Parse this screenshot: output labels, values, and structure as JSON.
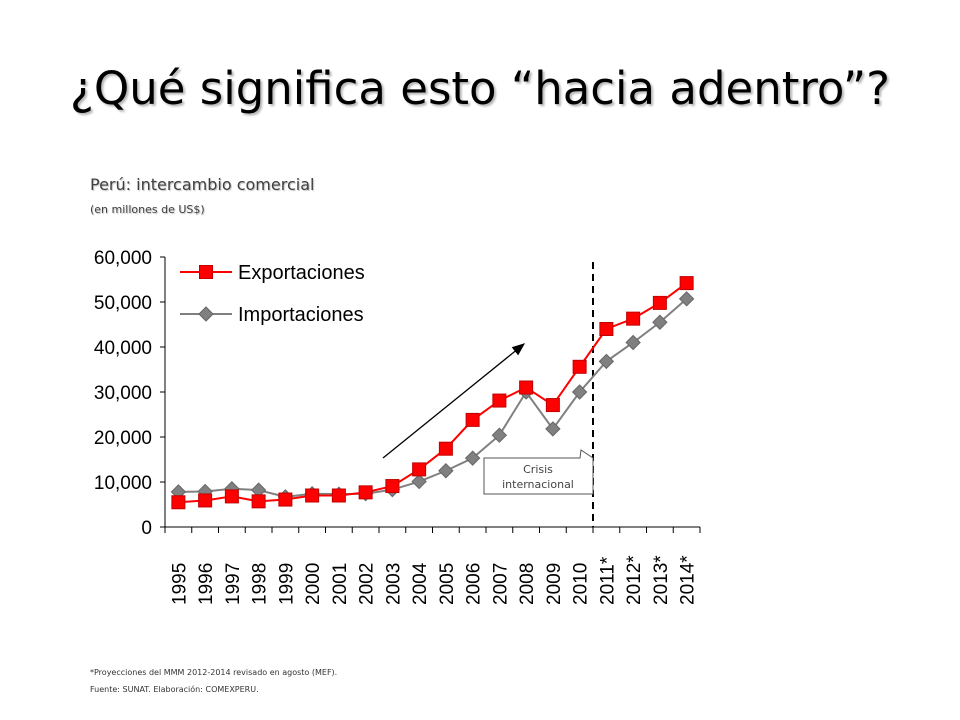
{
  "slide": {
    "title": "¿Qué significa esto “hacia adentro”?",
    "footnotes": [
      "*Proyecciones del MMM 2012-2014 revisado en agosto (MEF).",
      "Fuente: SUNAT. Elaboración: COMEXPERU."
    ]
  },
  "chart_data": {
    "type": "line",
    "title": "Perú: intercambio comercial",
    "subtitle": "(en millones de US$)",
    "xlabel": "",
    "ylabel": "",
    "categories": [
      "1995",
      "1996",
      "1997",
      "1998",
      "1999",
      "2000",
      "2001",
      "2002",
      "2003",
      "2004",
      "2005",
      "2006",
      "2007",
      "2008",
      "2009",
      "2010",
      "2011*",
      "2012*",
      "2013*",
      "2014*"
    ],
    "ylim": [
      0,
      60000
    ],
    "yticks": [
      0,
      10000,
      20000,
      30000,
      40000,
      50000,
      60000
    ],
    "ytick_labels": [
      "0",
      "10,000",
      "20,000",
      "30,000",
      "40,000",
      "50,000",
      "60,000"
    ],
    "grid": false,
    "legend_position": "top-left",
    "series": [
      {
        "name": "Exportaciones",
        "color": "#ff0000",
        "marker": "square",
        "values": [
          5500,
          5900,
          6800,
          5700,
          6100,
          7000,
          7000,
          7700,
          9100,
          12800,
          17400,
          23800,
          28100,
          31000,
          27100,
          35600,
          44000,
          46300,
          49800,
          54200
        ]
      },
      {
        "name": "Importaciones",
        "color": "#808080",
        "marker": "diamond",
        "values": [
          7800,
          7900,
          8500,
          8200,
          6700,
          7400,
          7300,
          7400,
          8300,
          10100,
          12500,
          15300,
          20400,
          30000,
          21800,
          30000,
          36800,
          41000,
          45500,
          50700
        ]
      }
    ],
    "annotations": {
      "crisis_label_line1": "Crisis",
      "crisis_label_line2": "internacional",
      "projection_divider_after": "2010",
      "trend_arrow": true
    }
  }
}
